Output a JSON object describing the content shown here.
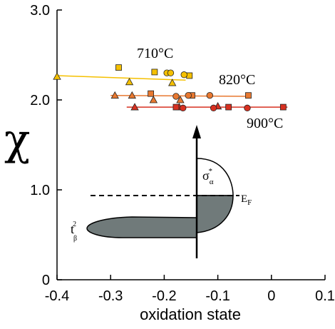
{
  "chart_data": {
    "type": "scatter",
    "xlabel": "oxidation state",
    "ylabel": "χ",
    "xlim": [
      -0.4,
      0.1
    ],
    "ylim": [
      0,
      3.0
    ],
    "x_ticks": [
      -0.4,
      -0.3,
      -0.2,
      -0.1,
      0,
      0.1
    ],
    "x_tick_labels": [
      "-0.4",
      "-0.3",
      "-0.2",
      "-0.1",
      "0",
      "0.1"
    ],
    "y_ticks": [
      0,
      1.0,
      2.0,
      3.0
    ],
    "y_tick_labels": [
      "0",
      "1.0",
      "2.0",
      "3.0"
    ],
    "grid": false,
    "marker_types": [
      "square",
      "circle",
      "triangle"
    ],
    "series": [
      {
        "name": "710°C",
        "color": "#f5c000",
        "fit_line": [
          [
            -0.4,
            2.27
          ],
          [
            -0.16,
            2.22
          ]
        ],
        "points": [
          {
            "x": -0.285,
            "y": 2.36,
            "marker": "square"
          },
          {
            "x": -0.218,
            "y": 2.31,
            "marker": "square"
          },
          {
            "x": -0.153,
            "y": 2.27,
            "marker": "square"
          },
          {
            "x": -0.195,
            "y": 2.3,
            "marker": "circle"
          },
          {
            "x": -0.188,
            "y": 2.3,
            "marker": "circle"
          },
          {
            "x": -0.163,
            "y": 2.28,
            "marker": "circle"
          },
          {
            "x": -0.4,
            "y": 2.26,
            "marker": "triangle"
          },
          {
            "x": -0.265,
            "y": 2.2,
            "marker": "triangle"
          },
          {
            "x": -0.185,
            "y": 2.19,
            "marker": "triangle"
          }
        ]
      },
      {
        "name": "820°C",
        "color": "#e87830",
        "fit_line": [
          [
            -0.3,
            2.05
          ],
          [
            -0.04,
            2.04
          ]
        ],
        "points": [
          {
            "x": -0.292,
            "y": 2.05,
            "marker": "triangle"
          },
          {
            "x": -0.26,
            "y": 2.05,
            "marker": "triangle"
          },
          {
            "x": -0.22,
            "y": 2.0,
            "marker": "triangle"
          },
          {
            "x": -0.225,
            "y": 2.07,
            "marker": "square"
          },
          {
            "x": -0.148,
            "y": 2.05,
            "marker": "square"
          },
          {
            "x": -0.043,
            "y": 2.05,
            "marker": "square"
          },
          {
            "x": -0.178,
            "y": 2.04,
            "marker": "circle"
          },
          {
            "x": -0.155,
            "y": 2.05,
            "marker": "circle"
          },
          {
            "x": -0.115,
            "y": 2.05,
            "marker": "circle"
          },
          {
            "x": -0.17,
            "y": 2.0,
            "marker": "triangle"
          }
        ]
      },
      {
        "name": "900°C",
        "color": "#d83020",
        "fit_line": [
          [
            -0.27,
            1.92
          ],
          [
            0.03,
            1.92
          ]
        ],
        "points": [
          {
            "x": -0.255,
            "y": 1.92,
            "marker": "triangle"
          },
          {
            "x": -0.172,
            "y": 1.92,
            "marker": "triangle"
          },
          {
            "x": -0.1,
            "y": 1.93,
            "marker": "triangle"
          },
          {
            "x": -0.178,
            "y": 1.92,
            "marker": "square"
          },
          {
            "x": -0.08,
            "y": 1.92,
            "marker": "square"
          },
          {
            "x": 0.022,
            "y": 1.92,
            "marker": "square"
          },
          {
            "x": -0.165,
            "y": 1.91,
            "marker": "circle"
          },
          {
            "x": -0.108,
            "y": 1.91,
            "marker": "circle"
          },
          {
            "x": -0.045,
            "y": 1.91,
            "marker": "circle"
          }
        ]
      }
    ],
    "inset": {
      "fermi_level_label": "E_F",
      "t2g_label": "t²β",
      "sigma_label": "σ*α",
      "fill_color": "#707a7a"
    }
  }
}
